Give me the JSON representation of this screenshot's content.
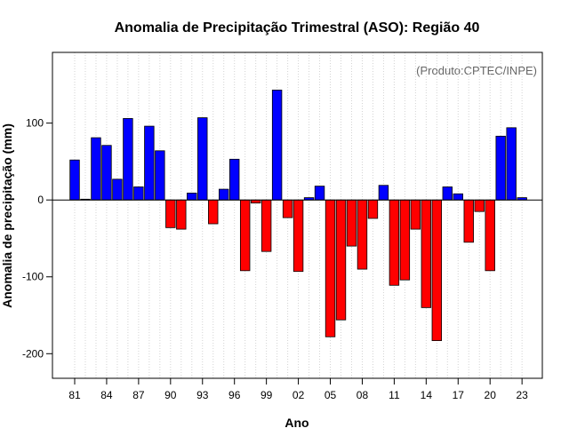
{
  "chart_data": {
    "type": "bar",
    "title": "Anomalia de Precipitação Trimestral (ASO): Região 40",
    "xlabel": "Ano",
    "ylabel": "Anomalia de precipitação (mm)",
    "credit": "(Produto:CPTEC/INPE)",
    "ylim": [
      -232,
      192
    ],
    "y_ticks": [
      100,
      0,
      -100,
      -200
    ],
    "y_tick_labels": [
      "100",
      "0",
      "-100",
      "-200"
    ],
    "x_tick_labels": [
      "81",
      "84",
      "87",
      "90",
      "93",
      "96",
      "99",
      "02",
      "05",
      "08",
      "11",
      "14",
      "17",
      "20",
      "23"
    ],
    "x_tick_every": 3,
    "grid": true,
    "colors": {
      "positive": "#0000ff",
      "negative": "#ff0000",
      "outline": "#000000",
      "grid": "#d3d3d3"
    },
    "categories": [
      "1981",
      "1982",
      "1983",
      "1984",
      "1985",
      "1986",
      "1987",
      "1988",
      "1989",
      "1990",
      "1991",
      "1992",
      "1993",
      "1994",
      "1995",
      "1996",
      "1997",
      "1998",
      "1999",
      "2000",
      "2001",
      "2002",
      "2003",
      "2004",
      "2005",
      "2006",
      "2007",
      "2008",
      "2009",
      "2010",
      "2011",
      "2012",
      "2013",
      "2014",
      "2015",
      "2016",
      "2017",
      "2018",
      "2019",
      "2020",
      "2021",
      "2022",
      "2023"
    ],
    "values": [
      52,
      1,
      81,
      71,
      27,
      106,
      17,
      96,
      64,
      -36,
      -38,
      9,
      107,
      -31,
      14,
      53,
      -92,
      -4,
      -67,
      143,
      -23,
      -93,
      3,
      18,
      -178,
      -156,
      -60,
      -90,
      -24,
      19,
      -111,
      -104,
      -38,
      -140,
      -183,
      17,
      8,
      -55,
      -15,
      -92,
      83,
      94,
      3
    ]
  }
}
